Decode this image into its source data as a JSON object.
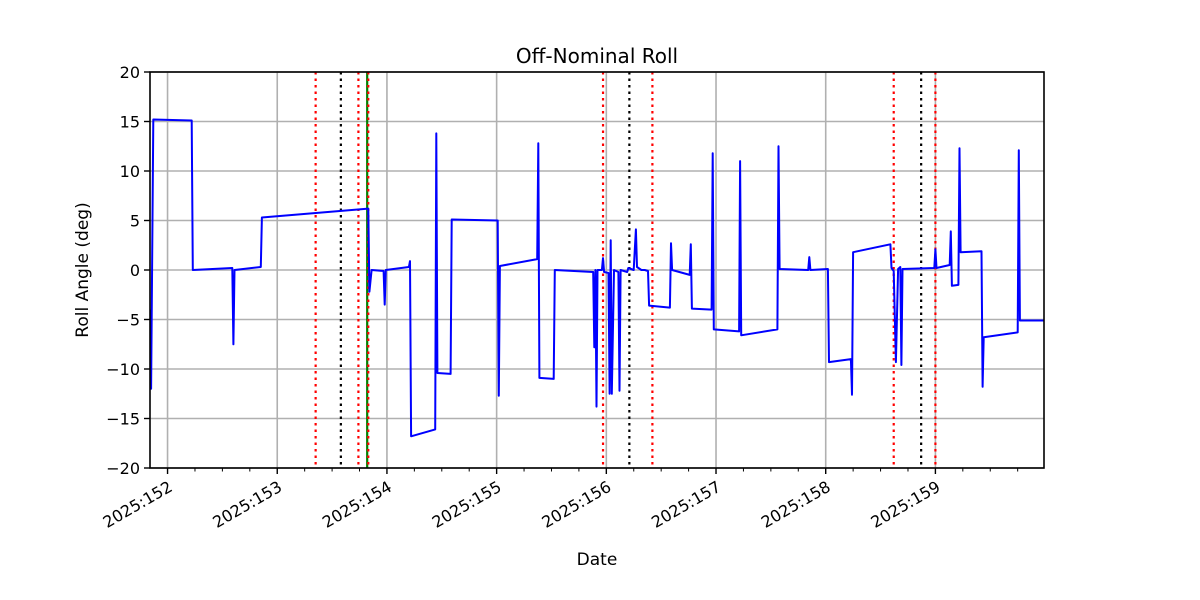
{
  "chart_data": {
    "type": "line",
    "title": "Off-Nominal Roll",
    "xlabel": "Date",
    "ylabel": "Roll Angle (deg)",
    "xlim": [
      151.84,
      159.99
    ],
    "ylim": [
      -20,
      20
    ],
    "grid": true,
    "x_ticks": [
      {
        "value": 152,
        "label": "2025:152"
      },
      {
        "value": 153,
        "label": "2025:153"
      },
      {
        "value": 154,
        "label": "2025:154"
      },
      {
        "value": 155,
        "label": "2025:155"
      },
      {
        "value": 156,
        "label": "2025:156"
      },
      {
        "value": 157,
        "label": "2025:157"
      },
      {
        "value": 158,
        "label": "2025:158"
      },
      {
        "value": 159,
        "label": "2025:159"
      }
    ],
    "y_ticks": [
      {
        "value": 20,
        "label": "20"
      },
      {
        "value": 15,
        "label": "15"
      },
      {
        "value": 10,
        "label": "10"
      },
      {
        "value": 5,
        "label": "5"
      },
      {
        "value": 0,
        "label": "0"
      },
      {
        "value": -5,
        "label": "−5"
      },
      {
        "value": -10,
        "label": "−10"
      },
      {
        "value": -15,
        "label": "−15"
      },
      {
        "value": -20,
        "label": "−20"
      }
    ],
    "minor_x_ticks": [
      152.25,
      152.5,
      152.75,
      153.25,
      153.5,
      153.75,
      154.25,
      154.5,
      154.75,
      155.25,
      155.5,
      155.75,
      156.25,
      156.5,
      156.75,
      157.25,
      157.5,
      157.75,
      158.25,
      158.5,
      158.75,
      159.25,
      159.5,
      159.75
    ],
    "vertical_markers": [
      {
        "x": 153.35,
        "color": "#ff0000",
        "style": "dotted"
      },
      {
        "x": 153.58,
        "color": "#000000",
        "style": "dotted"
      },
      {
        "x": 153.74,
        "color": "#ff0000",
        "style": "dotted"
      },
      {
        "x": 153.82,
        "color": "#008000",
        "style": "solid"
      },
      {
        "x": 153.83,
        "color": "#ff0000",
        "style": "dotted"
      },
      {
        "x": 155.97,
        "color": "#ff0000",
        "style": "dotted"
      },
      {
        "x": 156.21,
        "color": "#000000",
        "style": "dotted"
      },
      {
        "x": 156.42,
        "color": "#ff0000",
        "style": "dotted"
      },
      {
        "x": 158.62,
        "color": "#ff0000",
        "style": "dotted"
      },
      {
        "x": 158.87,
        "color": "#000000",
        "style": "dotted"
      },
      {
        "x": 159.0,
        "color": "#ff0000",
        "style": "dotted"
      }
    ],
    "series": [
      {
        "name": "Roll",
        "color": "#0000ff",
        "points": [
          [
            151.84,
            -4.0
          ],
          [
            151.85,
            -12.0
          ],
          [
            151.87,
            15.2
          ],
          [
            152.22,
            15.1
          ],
          [
            152.23,
            0.0
          ],
          [
            152.59,
            0.2
          ],
          [
            152.6,
            -7.5
          ],
          [
            152.61,
            0.0
          ],
          [
            152.85,
            0.3
          ],
          [
            152.86,
            5.3
          ],
          [
            153.83,
            6.2
          ],
          [
            153.84,
            -2.2
          ],
          [
            153.86,
            0.0
          ],
          [
            153.97,
            -0.1
          ],
          [
            153.98,
            -3.5
          ],
          [
            153.99,
            0.0
          ],
          [
            154.2,
            0.3
          ],
          [
            154.21,
            0.9
          ],
          [
            154.22,
            -16.8
          ],
          [
            154.44,
            -16.1
          ],
          [
            154.45,
            13.8
          ],
          [
            154.46,
            -10.4
          ],
          [
            154.58,
            -10.5
          ],
          [
            154.59,
            5.1
          ],
          [
            155.01,
            5.0
          ],
          [
            155.02,
            -12.7
          ],
          [
            155.03,
            0.4
          ],
          [
            155.37,
            1.1
          ],
          [
            155.38,
            12.8
          ],
          [
            155.39,
            -10.9
          ],
          [
            155.52,
            -11.0
          ],
          [
            155.53,
            0.0
          ],
          [
            155.88,
            -0.2
          ],
          [
            155.89,
            -7.8
          ],
          [
            155.9,
            0.0
          ],
          [
            155.91,
            -13.8
          ],
          [
            155.92,
            0.0
          ],
          [
            155.96,
            0.0
          ],
          [
            155.97,
            1.2
          ],
          [
            155.98,
            -0.2
          ],
          [
            156.02,
            -0.3
          ],
          [
            156.03,
            -12.5
          ],
          [
            156.04,
            3.0
          ],
          [
            156.05,
            -12.5
          ],
          [
            156.07,
            0.0
          ],
          [
            156.11,
            -0.2
          ],
          [
            156.12,
            -12.2
          ],
          [
            156.13,
            0.0
          ],
          [
            156.19,
            -0.2
          ],
          [
            156.2,
            0.2
          ],
          [
            156.25,
            0.0
          ],
          [
            156.27,
            4.1
          ],
          [
            156.28,
            0.3
          ],
          [
            156.32,
            0.0
          ],
          [
            156.35,
            0.0
          ],
          [
            156.38,
            -0.1
          ],
          [
            156.39,
            -3.6
          ],
          [
            156.58,
            -3.8
          ],
          [
            156.59,
            2.7
          ],
          [
            156.6,
            0.0
          ],
          [
            156.76,
            -0.5
          ],
          [
            156.77,
            2.6
          ],
          [
            156.78,
            -3.9
          ],
          [
            156.96,
            -4.0
          ],
          [
            156.97,
            11.8
          ],
          [
            156.98,
            -6.0
          ],
          [
            157.21,
            -6.2
          ],
          [
            157.22,
            11.0
          ],
          [
            157.23,
            -6.6
          ],
          [
            157.56,
            -6.0
          ],
          [
            157.57,
            12.5
          ],
          [
            157.58,
            0.1
          ],
          [
            157.84,
            0.0
          ],
          [
            157.85,
            1.3
          ],
          [
            157.86,
            0.0
          ],
          [
            158.02,
            0.1
          ],
          [
            158.03,
            -9.3
          ],
          [
            158.23,
            -9.0
          ],
          [
            158.24,
            -12.6
          ],
          [
            158.25,
            1.8
          ],
          [
            158.59,
            2.6
          ],
          [
            158.6,
            0.2
          ],
          [
            158.62,
            -0.1
          ],
          [
            158.64,
            -9.3
          ],
          [
            158.66,
            0.1
          ],
          [
            158.68,
            0.3
          ],
          [
            158.69,
            -9.6
          ],
          [
            158.7,
            0.1
          ],
          [
            158.99,
            0.2
          ],
          [
            159.0,
            2.1
          ],
          [
            159.01,
            0.2
          ],
          [
            159.13,
            0.5
          ],
          [
            159.14,
            3.9
          ],
          [
            159.15,
            -1.6
          ],
          [
            159.21,
            -1.5
          ],
          [
            159.22,
            12.3
          ],
          [
            159.23,
            1.8
          ],
          [
            159.42,
            1.9
          ],
          [
            159.43,
            -11.8
          ],
          [
            159.44,
            -6.8
          ],
          [
            159.75,
            -6.3
          ],
          [
            159.76,
            12.1
          ],
          [
            159.77,
            -5.1
          ],
          [
            159.99,
            -5.1
          ]
        ]
      }
    ]
  }
}
